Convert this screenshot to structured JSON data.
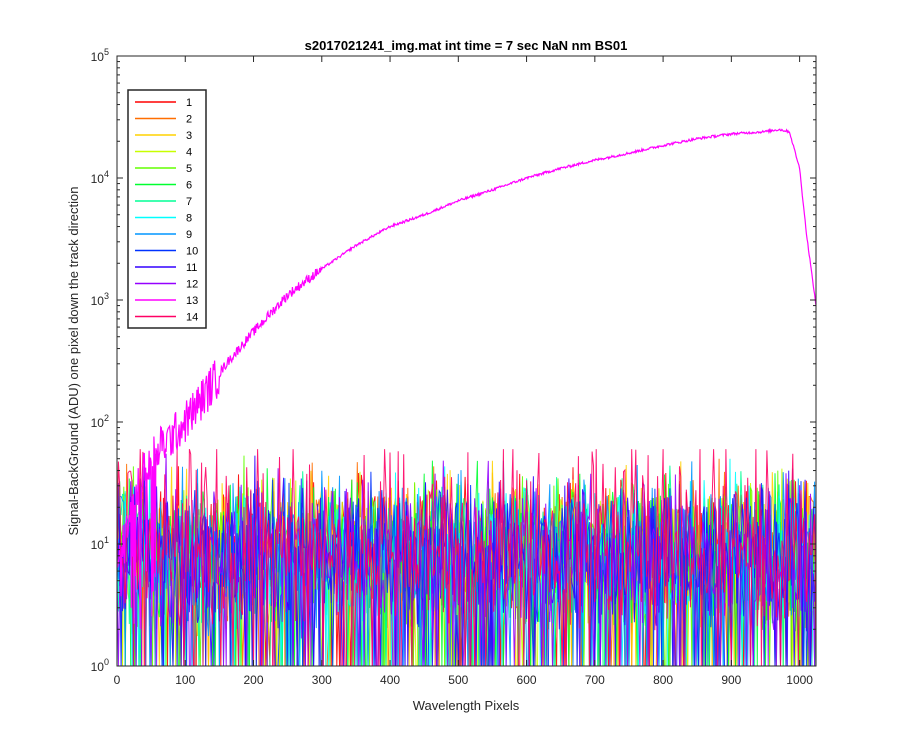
{
  "chart_data": {
    "type": "line",
    "title": "s2017021241_img.mat int time = 7 sec  NaN nm BS01",
    "xlabel": "Wavelength Pixels",
    "ylabel": "Signal-BackGround (ADU) one pixel down the track direction",
    "xlim": [
      0,
      1024
    ],
    "ylim": [
      1,
      100000
    ],
    "yscale": "log",
    "xticks": [
      "0",
      "100",
      "200",
      "300",
      "400",
      "500",
      "600",
      "700",
      "800",
      "900",
      "1000"
    ],
    "xtick_values": [
      0,
      100,
      200,
      300,
      400,
      500,
      600,
      700,
      800,
      900,
      1000
    ],
    "yticks": [
      {
        "base": "10",
        "exp": "0",
        "value": 1
      },
      {
        "base": "10",
        "exp": "1",
        "value": 10
      },
      {
        "base": "10",
        "exp": "2",
        "value": 100
      },
      {
        "base": "10",
        "exp": "3",
        "value": 1000
      },
      {
        "base": "10",
        "exp": "4",
        "value": 10000
      },
      {
        "base": "10",
        "exp": "5",
        "value": 100000
      }
    ],
    "grid": false,
    "legend_position": "top-left",
    "noise_level": {
      "median": 10,
      "range": [
        1,
        60
      ]
    },
    "series": [
      {
        "name": "1",
        "color": "#ff0000"
      },
      {
        "name": "2",
        "color": "#ff6e00"
      },
      {
        "name": "3",
        "color": "#ffd200"
      },
      {
        "name": "4",
        "color": "#c8ff00"
      },
      {
        "name": "5",
        "color": "#64ff00"
      },
      {
        "name": "6",
        "color": "#00ff30"
      },
      {
        "name": "7",
        "color": "#00ff96"
      },
      {
        "name": "8",
        "color": "#00ffff"
      },
      {
        "name": "9",
        "color": "#0096ff"
      },
      {
        "name": "10",
        "color": "#0032ff"
      },
      {
        "name": "11",
        "color": "#3200ff"
      },
      {
        "name": "12",
        "color": "#9600ff"
      },
      {
        "name": "13",
        "color": "#ff00ff",
        "x": [
          0,
          20,
          40,
          60,
          80,
          100,
          130,
          160,
          200,
          250,
          300,
          350,
          400,
          450,
          500,
          550,
          600,
          650,
          700,
          750,
          800,
          850,
          900,
          950,
          970,
          985,
          1000,
          1010,
          1024
        ],
        "values": [
          6,
          20,
          40,
          60,
          75,
          100,
          170,
          300,
          550,
          1100,
          1800,
          2800,
          4000,
          5000,
          6500,
          8000,
          10000,
          12000,
          14000,
          16000,
          18500,
          21000,
          23000,
          24000,
          25000,
          24000,
          12000,
          3500,
          900
        ]
      },
      {
        "name": "14",
        "color": "#ff0064"
      }
    ]
  }
}
